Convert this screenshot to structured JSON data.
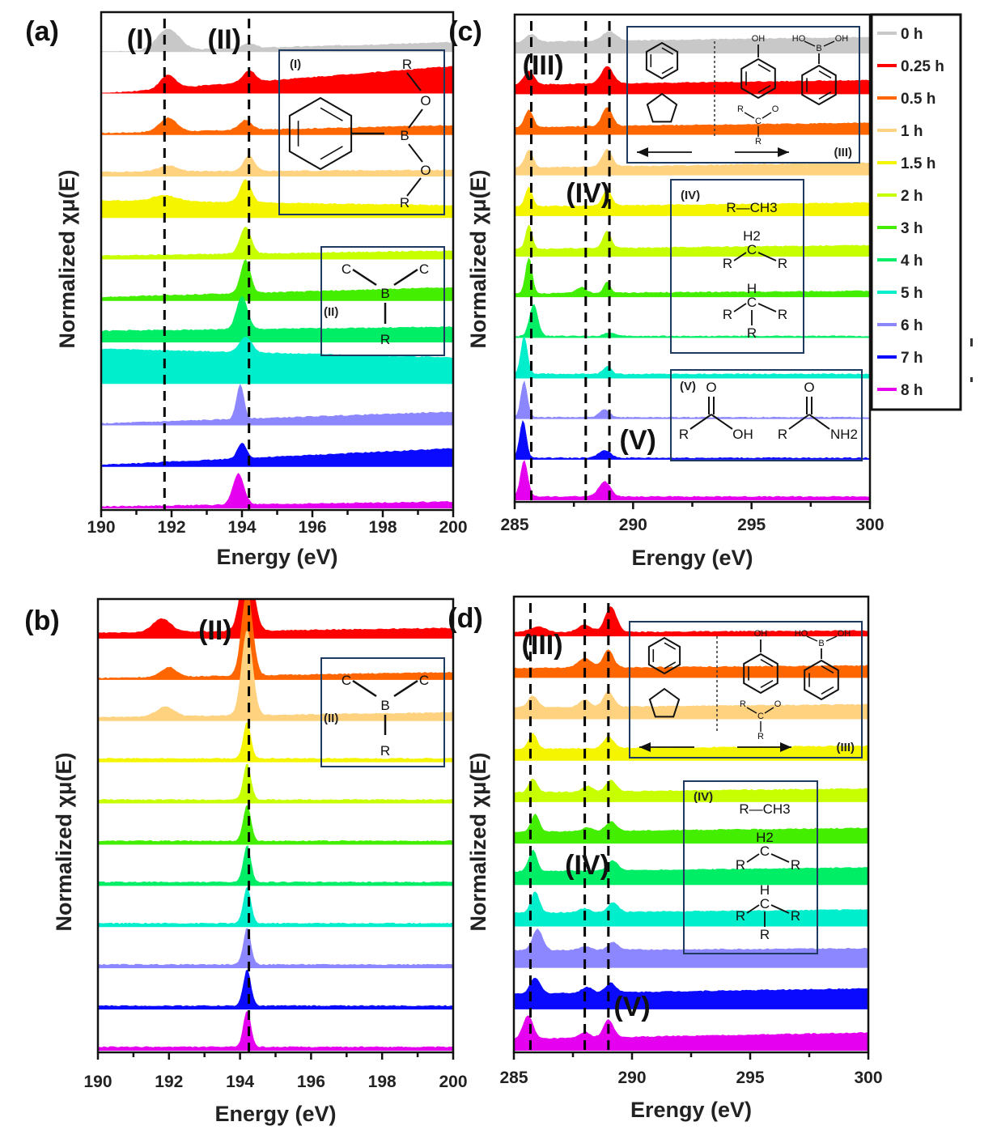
{
  "chart_data": [
    {
      "id": "a",
      "type": "area",
      "panel_label": "(a)",
      "xlabel": "Energy (eV)",
      "ylabel": "Normalized χμ(E)",
      "xlim": [
        190,
        200
      ],
      "xticks": [
        190,
        192,
        194,
        196,
        198,
        200
      ],
      "reference_lines": [
        191.8,
        194.2
      ],
      "region_labels": [
        {
          "text": "(I)",
          "x": 191.1
        },
        {
          "text": "(II)",
          "x": 193.5
        }
      ],
      "insets": [
        {
          "label": "(I)",
          "structure": "phenyl-B(OR)2 boronic ester",
          "atoms": [
            "R",
            "O",
            "B",
            "O",
            "R"
          ]
        },
        {
          "label": "(II)",
          "structure": "trialkylborane",
          "atoms": [
            "C",
            "C",
            "B",
            "R"
          ]
        }
      ],
      "series": [
        {
          "name": "0 h",
          "baseline": 0.0,
          "slope": 0.1,
          "peaks": [
            [
              191.9,
              0.55,
              0.45
            ],
            [
              194.2,
              0.12,
              0.25
            ]
          ]
        },
        {
          "name": "0.25 h",
          "baseline": 0.0,
          "slope": 0.28,
          "peaks": [
            [
              191.9,
              0.35,
              0.3
            ],
            [
              194.2,
              0.3,
              0.25
            ]
          ]
        },
        {
          "name": "0.5 h",
          "baseline": 0.05,
          "slope": 0.08,
          "peaks": [
            [
              191.9,
              0.35,
              0.35
            ],
            [
              194.1,
              0.25,
              0.25
            ]
          ]
        },
        {
          "name": "1 h",
          "baseline": 0.12,
          "slope": 0.02,
          "peaks": [
            [
              191.9,
              0.15,
              0.4
            ],
            [
              194.2,
              0.4,
              0.22
            ]
          ]
        },
        {
          "name": "1.5 h",
          "baseline": 0.45,
          "slope": -0.05,
          "peaks": [
            [
              191.8,
              0.15,
              0.5
            ],
            [
              194.1,
              0.6,
              0.22
            ]
          ]
        },
        {
          "name": "2 h",
          "baseline": 0.1,
          "slope": 0.05,
          "peaks": [
            [
              194.1,
              0.7,
              0.22
            ]
          ]
        },
        {
          "name": "3 h",
          "baseline": 0.1,
          "slope": 0.1,
          "peaks": [
            [
              194.1,
              0.85,
              0.2
            ]
          ]
        },
        {
          "name": "4 h",
          "baseline": 0.3,
          "slope": 0.04,
          "peaks": [
            [
              194.0,
              0.85,
              0.22
            ]
          ]
        },
        {
          "name": "5 h",
          "baseline": 0.9,
          "slope": -0.09,
          "peaks": [
            [
              194.1,
              0.4,
              0.25
            ]
          ]
        },
        {
          "name": "6 h",
          "baseline": 0.05,
          "slope": 0.12,
          "peaks": [
            [
              193.95,
              0.9,
              0.15
            ]
          ]
        },
        {
          "name": "7 h",
          "baseline": 0.05,
          "slope": 0.17,
          "peaks": [
            [
              194.0,
              0.4,
              0.18
            ]
          ]
        },
        {
          "name": "8 h",
          "baseline": 0.05,
          "slope": 0.05,
          "peaks": [
            [
              193.9,
              0.8,
              0.22
            ]
          ]
        }
      ]
    },
    {
      "id": "b",
      "type": "area",
      "panel_label": "(b)",
      "xlabel": "Energy (eV)",
      "ylabel": "Normalized χμ(E)",
      "xlim": [
        190,
        200
      ],
      "xticks": [
        190,
        192,
        194,
        196,
        198,
        200
      ],
      "reference_lines": [
        194.25
      ],
      "region_labels": [
        {
          "text": "(II)",
          "x": 193.3
        }
      ],
      "insets": [
        {
          "label": "(II)",
          "structure": "trialkylborane",
          "atoms": [
            "C",
            "C",
            "B",
            "R"
          ]
        }
      ],
      "series": [
        {
          "name": "0.25 h",
          "baseline": 0.15,
          "slope": 0.05,
          "peaks": [
            [
              191.8,
              0.35,
              0.35
            ],
            [
              194.2,
              2.0,
              0.25
            ]
          ]
        },
        {
          "name": "0.5 h",
          "baseline": 0.05,
          "slope": 0.06,
          "peaks": [
            [
              192.0,
              0.25,
              0.3
            ],
            [
              194.2,
              2.2,
              0.22
            ]
          ]
        },
        {
          "name": "1 h",
          "baseline": 0.1,
          "slope": 0.05,
          "peaks": [
            [
              191.9,
              0.25,
              0.35
            ],
            [
              194.2,
              2.2,
              0.22
            ]
          ]
        },
        {
          "name": "1.5 h",
          "baseline": 0.1,
          "slope": 0.0,
          "peaks": [
            [
              194.2,
              0.95,
              0.15
            ]
          ]
        },
        {
          "name": "2 h",
          "baseline": 0.1,
          "slope": 0.0,
          "peaks": [
            [
              194.2,
              0.95,
              0.15
            ]
          ]
        },
        {
          "name": "3 h",
          "baseline": 0.1,
          "slope": 0.0,
          "peaks": [
            [
              194.2,
              0.95,
              0.15
            ]
          ]
        },
        {
          "name": "4 h",
          "baseline": 0.1,
          "slope": 0.0,
          "peaks": [
            [
              194.2,
              0.95,
              0.15
            ]
          ]
        },
        {
          "name": "5 h",
          "baseline": 0.1,
          "slope": 0.0,
          "peaks": [
            [
              194.2,
              0.95,
              0.15
            ]
          ]
        },
        {
          "name": "6 h",
          "baseline": 0.1,
          "slope": 0.0,
          "peaks": [
            [
              194.2,
              0.95,
              0.15
            ]
          ]
        },
        {
          "name": "7 h",
          "baseline": 0.1,
          "slope": 0.0,
          "peaks": [
            [
              194.2,
              0.95,
              0.15
            ]
          ]
        },
        {
          "name": "8 h",
          "baseline": 0.1,
          "slope": 0.0,
          "peaks": [
            [
              194.2,
              0.95,
              0.15
            ]
          ]
        }
      ]
    },
    {
      "id": "c",
      "type": "area",
      "panel_label": "(c)",
      "xlabel": "Erengy (eV)",
      "ylabel": "Normalized χμ(E)",
      "xlim": [
        285,
        300
      ],
      "xticks": [
        285,
        290,
        295,
        300
      ],
      "reference_lines": [
        285.7,
        288.0,
        289.0
      ],
      "region_labels": [
        {
          "text": "(III)",
          "x": 286.2
        },
        {
          "text": "(IV)",
          "x": 288.1
        },
        {
          "text": "(V)",
          "x": 290.2
        }
      ],
      "insets": [
        {
          "label": "(III)",
          "structure": "aromatic C=C / C=O (benzene, cyclopentadiene | phenol, ketone, phenylboronic acid)",
          "atoms": [
            "OH",
            "HO",
            "B",
            "OH",
            "R",
            "C",
            "O",
            "R"
          ]
        },
        {
          "label": "(IV)",
          "structure": "aliphatic C-H",
          "atoms": [
            "R—CH3",
            "H2",
            "C",
            "R",
            "R",
            "H",
            "C",
            "R",
            "R",
            "R"
          ]
        },
        {
          "label": "(V)",
          "structure": "carboxylic acid / amide",
          "atoms": [
            "O",
            "R",
            "OH",
            "O",
            "R",
            "NH2"
          ]
        }
      ],
      "series": [
        {
          "name": "0 h",
          "baseline": 0.3,
          "slope": 0.08,
          "peaks": [
            [
              285.7,
              0.2,
              0.3
            ],
            [
              289.0,
              0.25,
              0.4
            ]
          ]
        },
        {
          "name": "0.25 h",
          "baseline": 0.25,
          "slope": 0.07,
          "peaks": [
            [
              285.6,
              0.35,
              0.3
            ],
            [
              288.9,
              0.45,
              0.35
            ]
          ]
        },
        {
          "name": "0.5 h",
          "baseline": 0.2,
          "slope": 0.07,
          "peaks": [
            [
              285.6,
              0.45,
              0.25
            ],
            [
              288.9,
              0.5,
              0.3
            ]
          ]
        },
        {
          "name": "1 h",
          "baseline": 0.2,
          "slope": 0.08,
          "peaks": [
            [
              285.6,
              0.45,
              0.25
            ],
            [
              288.9,
              0.45,
              0.3
            ]
          ]
        },
        {
          "name": "1.5 h",
          "baseline": 0.25,
          "slope": 0.06,
          "peaks": [
            [
              285.6,
              0.5,
              0.22
            ],
            [
              288.9,
              0.45,
              0.25
            ]
          ]
        },
        {
          "name": "2 h",
          "baseline": 0.2,
          "slope": 0.06,
          "peaks": [
            [
              285.6,
              0.65,
              0.2
            ],
            [
              288.9,
              0.45,
              0.25
            ]
          ]
        },
        {
          "name": "3 h",
          "baseline": 0.1,
          "slope": 0.04,
          "peaks": [
            [
              285.6,
              0.95,
              0.2
            ],
            [
              287.8,
              0.15,
              0.3
            ],
            [
              288.9,
              0.3,
              0.2
            ]
          ]
        },
        {
          "name": "4 h",
          "baseline": 0.05,
          "slope": 0.0,
          "peaks": [
            [
              285.8,
              0.85,
              0.25
            ],
            [
              289.0,
              0.1,
              0.3
            ]
          ]
        },
        {
          "name": "5 h",
          "baseline": 0.12,
          "slope": 0.0,
          "peaks": [
            [
              285.4,
              1.0,
              0.2
            ],
            [
              288.9,
              0.2,
              0.25
            ]
          ]
        },
        {
          "name": "6 h",
          "baseline": 0.05,
          "slope": 0.0,
          "peaks": [
            [
              285.4,
              0.95,
              0.2
            ],
            [
              288.8,
              0.2,
              0.3
            ]
          ]
        },
        {
          "name": "7 h",
          "baseline": 0.05,
          "slope": 0.0,
          "peaks": [
            [
              285.35,
              1.0,
              0.2
            ],
            [
              288.8,
              0.2,
              0.35
            ]
          ]
        },
        {
          "name": "8 h",
          "baseline": 0.1,
          "slope": 0.0,
          "peaks": [
            [
              285.4,
              0.95,
              0.22
            ],
            [
              288.8,
              0.4,
              0.35
            ]
          ]
        }
      ]
    },
    {
      "id": "d",
      "type": "area",
      "panel_label": "(d)",
      "xlabel": "Erengy (eV)",
      "ylabel": "Normalized χμ(E)",
      "xlim": [
        285,
        300
      ],
      "xticks": [
        285,
        290,
        295,
        300
      ],
      "reference_lines": [
        285.7,
        288.0,
        289.0
      ],
      "region_labels": [
        {
          "text": "(III)",
          "x": 286.2
        },
        {
          "text": "(IV)",
          "x": 288.1
        },
        {
          "text": "(V)",
          "x": 290.0
        }
      ],
      "insets": [
        {
          "label": "(III)",
          "structure": "aromatic C=C / C=O (benzene, cyclopentadiene | phenol, ketone, phenylboronic acid)",
          "atoms": [
            "OH",
            "HO",
            "B",
            "OH",
            "R",
            "C",
            "O",
            "R"
          ]
        },
        {
          "label": "(IV)",
          "structure": "aliphatic C-H",
          "atoms": [
            "R—CH3",
            "H2",
            "C",
            "R",
            "R",
            "H",
            "C",
            "R",
            "R",
            "R"
          ]
        }
      ],
      "series": [
        {
          "name": "0.25 h",
          "baseline": 0.1,
          "slope": 0.03,
          "peaks": [
            [
              286.0,
              0.15,
              0.5
            ],
            [
              288.0,
              0.2,
              0.4
            ],
            [
              289.1,
              0.65,
              0.35
            ]
          ]
        },
        {
          "name": "0.5 h",
          "baseline": 0.25,
          "slope": 0.04,
          "peaks": [
            [
              288.0,
              0.25,
              0.4
            ],
            [
              289.0,
              0.45,
              0.3
            ]
          ]
        },
        {
          "name": "1 h",
          "baseline": 0.3,
          "slope": 0.05,
          "peaks": [
            [
              285.8,
              0.3,
              0.3
            ],
            [
              288.0,
              0.2,
              0.3
            ],
            [
              289.0,
              0.4,
              0.3
            ]
          ]
        },
        {
          "name": "1.5 h",
          "baseline": 0.3,
          "slope": 0.05,
          "peaks": [
            [
              285.8,
              0.4,
              0.25
            ],
            [
              289.0,
              0.3,
              0.3
            ]
          ]
        },
        {
          "name": "2 h",
          "baseline": 0.25,
          "slope": 0.06,
          "peaks": [
            [
              285.8,
              0.35,
              0.25
            ],
            [
              288.1,
              0.15,
              0.3
            ],
            [
              289.1,
              0.3,
              0.3
            ]
          ]
        },
        {
          "name": "3 h",
          "baseline": 0.3,
          "slope": 0.06,
          "peaks": [
            [
              285.9,
              0.45,
              0.25
            ],
            [
              288.1,
              0.1,
              0.3
            ],
            [
              289.1,
              0.25,
              0.3
            ]
          ]
        },
        {
          "name": "4 h",
          "baseline": 0.35,
          "slope": 0.06,
          "peaks": [
            [
              285.8,
              0.55,
              0.25
            ],
            [
              289.2,
              0.25,
              0.3
            ]
          ]
        },
        {
          "name": "5 h",
          "baseline": 0.35,
          "slope": 0.05,
          "peaks": [
            [
              285.9,
              0.55,
              0.25
            ],
            [
              288.0,
              0.1,
              0.3
            ],
            [
              289.2,
              0.25,
              0.3
            ]
          ]
        },
        {
          "name": "6 h",
          "baseline": 0.45,
          "slope": 0.03,
          "peaks": [
            [
              286.0,
              0.55,
              0.3
            ],
            [
              288.0,
              0.1,
              0.3
            ],
            [
              289.2,
              0.2,
              0.3
            ]
          ]
        },
        {
          "name": "7 h",
          "baseline": 0.4,
          "slope": 0.08,
          "peaks": [
            [
              285.9,
              0.4,
              0.3
            ],
            [
              288.1,
              0.15,
              0.3
            ],
            [
              289.1,
              0.25,
              0.3
            ]
          ]
        },
        {
          "name": "8 h",
          "baseline": 0.3,
          "slope": 0.1,
          "peaks": [
            [
              285.6,
              0.6,
              0.3
            ],
            [
              288.0,
              0.15,
              0.3
            ],
            [
              289.0,
              0.45,
              0.3
            ]
          ]
        }
      ]
    }
  ],
  "legend": {
    "placement": "right of panel c",
    "entries": [
      {
        "label": "0 h",
        "color": "#c8c8c8"
      },
      {
        "label": "0.25 h",
        "color": "#ff0000"
      },
      {
        "label": "0.5 h",
        "color": "#ff6600"
      },
      {
        "label": "1 h",
        "color": "#ffd27f"
      },
      {
        "label": "1.5 h",
        "color": "#f5f500"
      },
      {
        "label": "2 h",
        "color": "#c8ff00"
      },
      {
        "label": "3 h",
        "color": "#44ee00"
      },
      {
        "label": "4 h",
        "color": "#00ee66"
      },
      {
        "label": "5 h",
        "color": "#00eecc"
      },
      {
        "label": "6 h",
        "color": "#8c86ff"
      },
      {
        "label": "7 h",
        "color": "#0a0aff"
      },
      {
        "label": "8 h",
        "color": "#e600f0"
      }
    ]
  }
}
